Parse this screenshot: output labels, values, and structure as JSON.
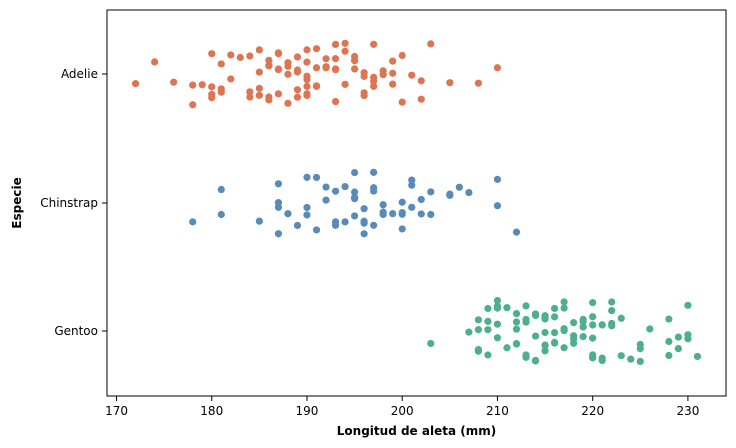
{
  "chart_data": {
    "type": "scatter",
    "subtype": "strip",
    "xlabel": "Longitud de aleta (mm)",
    "ylabel": "Especie",
    "xlim": [
      169,
      234
    ],
    "xticks": [
      170,
      180,
      190,
      200,
      210,
      220,
      230
    ],
    "grid": false,
    "categories": [
      "Adelie",
      "Chinstrap",
      "Gentoo"
    ],
    "series": [
      {
        "category": "Adelie",
        "color": "#dd7553",
        "values": [
          172,
          174,
          176,
          178,
          178,
          179,
          180,
          180,
          180,
          180,
          181,
          181,
          181,
          182,
          182,
          183,
          184,
          184,
          184,
          185,
          185,
          185,
          185,
          186,
          186,
          186,
          186,
          186,
          187,
          187,
          187,
          187,
          187,
          188,
          188,
          188,
          188,
          189,
          189,
          189,
          189,
          189,
          190,
          190,
          190,
          190,
          190,
          190,
          190,
          191,
          191,
          191,
          191,
          192,
          192,
          192,
          193,
          193,
          193,
          193,
          193,
          194,
          194,
          194,
          195,
          195,
          195,
          195,
          196,
          196,
          196,
          196,
          197,
          197,
          197,
          197,
          198,
          198,
          199,
          199,
          199,
          200,
          200,
          201,
          202,
          202,
          203,
          205,
          208,
          210
        ]
      },
      {
        "category": "Chinstrap",
        "color": "#5a8ab8",
        "values": [
          178,
          181,
          181,
          185,
          187,
          187,
          187,
          187,
          188,
          189,
          190,
          190,
          190,
          191,
          191,
          192,
          192,
          193,
          193,
          193,
          194,
          194,
          195,
          195,
          195,
          195,
          195,
          196,
          196,
          196,
          196,
          197,
          197,
          197,
          197,
          198,
          198,
          198,
          199,
          200,
          200,
          200,
          200,
          201,
          201,
          201,
          202,
          202,
          203,
          203,
          205,
          205,
          206,
          207,
          210,
          210,
          212
        ]
      },
      {
        "category": "Gentoo",
        "color": "#4daf8e",
        "values": [
          203,
          207,
          208,
          208,
          208,
          208,
          209,
          209,
          209,
          209,
          210,
          210,
          210,
          210,
          210,
          210,
          211,
          211,
          212,
          212,
          212,
          212,
          212,
          213,
          213,
          213,
          213,
          213,
          214,
          214,
          214,
          214,
          214,
          215,
          215,
          215,
          215,
          215,
          215,
          215,
          216,
          216,
          216,
          216,
          216,
          217,
          217,
          217,
          217,
          217,
          218,
          218,
          218,
          218,
          219,
          219,
          219,
          219,
          219,
          220,
          220,
          220,
          220,
          220,
          220,
          220,
          221,
          221,
          221,
          221,
          222,
          222,
          222,
          222,
          223,
          223,
          224,
          225,
          225,
          225,
          226,
          228,
          228,
          228,
          229,
          229,
          230,
          230,
          230,
          231
        ]
      }
    ]
  }
}
